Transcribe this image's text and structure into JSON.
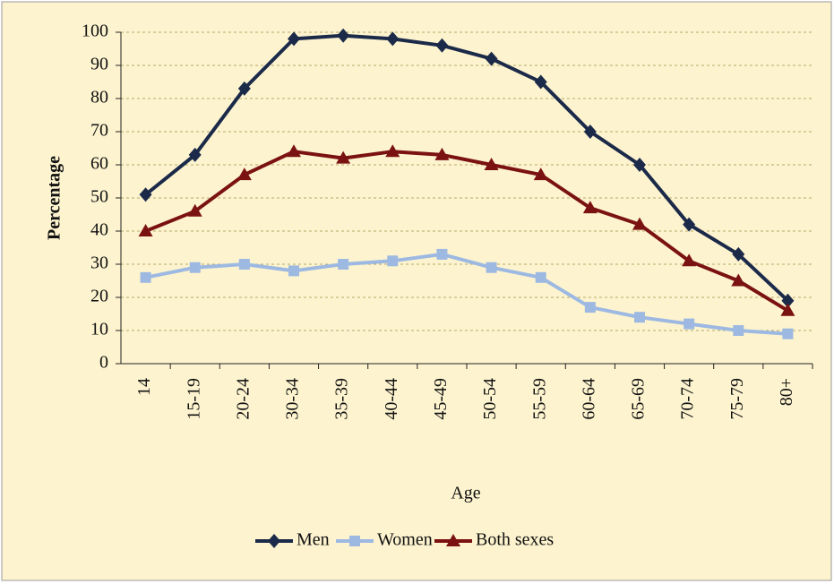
{
  "chart_data": {
    "type": "line",
    "xlabel": "Age",
    "ylabel": "Percentage",
    "categories": [
      "14",
      "15-19",
      "20-24",
      "30-34",
      "35-39",
      "40-44",
      "45-49",
      "50-54",
      "55-59",
      "60-64",
      "65-69",
      "70-74",
      "75-79",
      "80+"
    ],
    "series": [
      {
        "name": "Men",
        "color": "#1c2a4a",
        "marker": "diamond",
        "values": [
          51,
          63,
          83,
          98,
          99,
          98,
          96,
          92,
          85,
          70,
          60,
          42,
          33,
          19
        ]
      },
      {
        "name": "Women",
        "color": "#9db9e2",
        "marker": "square",
        "values": [
          26,
          29,
          30,
          28,
          30,
          31,
          33,
          29,
          26,
          17,
          14,
          12,
          10,
          9
        ]
      },
      {
        "name": "Both sexes",
        "color": "#7b1212",
        "marker": "triangle",
        "values": [
          40,
          46,
          57,
          64,
          62,
          64,
          63,
          60,
          57,
          47,
          42,
          31,
          25,
          16
        ]
      }
    ],
    "ylim": [
      0,
      100
    ],
    "yticks": [
      0,
      10,
      20,
      30,
      40,
      50,
      60,
      70,
      80,
      90,
      100
    ],
    "grid": true,
    "legend": "bottom"
  }
}
